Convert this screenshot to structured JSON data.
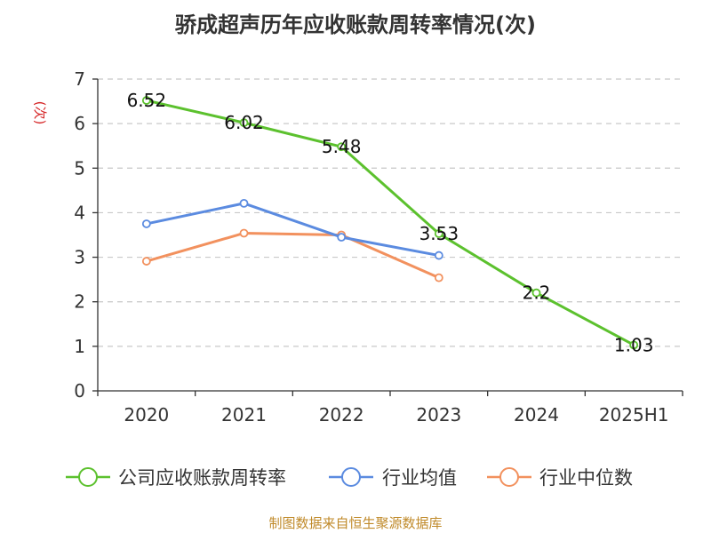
{
  "chart_data": {
    "type": "line",
    "title": "骄成超声历年应收账款周转率情况(次)",
    "ylabel": "(次)",
    "xlabel": "",
    "categories": [
      "2020",
      "2021",
      "2022",
      "2023",
      "2024",
      "2025H1"
    ],
    "ylim": [
      0,
      7
    ],
    "yticks": [
      0,
      1,
      2,
      3,
      4,
      5,
      6,
      7
    ],
    "grid": true,
    "legend_position": "bottom",
    "series": [
      {
        "name": "公司应收账款周转率",
        "color": "#5cc12e",
        "values": [
          6.52,
          6.02,
          5.48,
          3.53,
          2.2,
          1.03
        ],
        "labels": [
          "6.52",
          "6.02",
          "5.48",
          "3.53",
          "2.2",
          "1.03"
        ]
      },
      {
        "name": "行业均值",
        "color": "#5b8be0",
        "values": [
          3.75,
          4.21,
          3.45,
          3.04,
          null,
          null
        ]
      },
      {
        "name": "行业中位数",
        "color": "#f2915e",
        "values": [
          2.91,
          3.54,
          3.5,
          2.54,
          null,
          null
        ]
      }
    ]
  },
  "footer": "制图数据来自恒生聚源数据库"
}
